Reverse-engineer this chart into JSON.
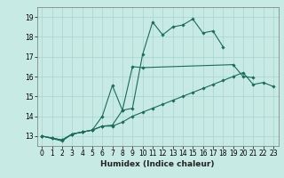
{
  "title": "",
  "xlabel": "Humidex (Indice chaleur)",
  "xlim": [
    -0.5,
    23.5
  ],
  "ylim": [
    12.5,
    19.5
  ],
  "yticks": [
    13,
    14,
    15,
    16,
    17,
    18,
    19
  ],
  "xticks": [
    0,
    1,
    2,
    3,
    4,
    5,
    6,
    7,
    8,
    9,
    10,
    11,
    12,
    13,
    14,
    15,
    16,
    17,
    18,
    19,
    20,
    21,
    22,
    23
  ],
  "background_color": "#c8eae4",
  "grid_color": "#a8d4ce",
  "line_color": "#1a6b5a",
  "line1_x": [
    0,
    1,
    2,
    3,
    4,
    5,
    6,
    7,
    8,
    9,
    10,
    11,
    12,
    13,
    14,
    15,
    16,
    17,
    18
  ],
  "line1_y": [
    13.0,
    12.9,
    12.8,
    13.1,
    13.2,
    13.3,
    13.5,
    13.55,
    14.3,
    14.4,
    17.1,
    18.75,
    18.1,
    18.5,
    18.6,
    18.9,
    18.2,
    18.3,
    17.5
  ],
  "line2_x": [
    0,
    1,
    2,
    3,
    4,
    5,
    6,
    7,
    8,
    9,
    10,
    19,
    20,
    21
  ],
  "line2_y": [
    13.0,
    12.9,
    12.8,
    13.1,
    13.2,
    13.3,
    14.0,
    15.55,
    14.3,
    16.5,
    16.45,
    16.6,
    16.0,
    15.95
  ],
  "line3_x": [
    0,
    2,
    3,
    4,
    5,
    6,
    7,
    8,
    9,
    10,
    11,
    12,
    13,
    14,
    15,
    16,
    17,
    18,
    19,
    20,
    21,
    22,
    23
  ],
  "line3_y": [
    13.0,
    12.75,
    13.1,
    13.2,
    13.3,
    13.5,
    13.5,
    13.7,
    14.0,
    14.2,
    14.4,
    14.6,
    14.8,
    15.0,
    15.2,
    15.4,
    15.6,
    15.8,
    16.0,
    16.2,
    15.6,
    15.7,
    15.5
  ],
  "tick_fontsize": 5.5,
  "xlabel_fontsize": 6.5
}
